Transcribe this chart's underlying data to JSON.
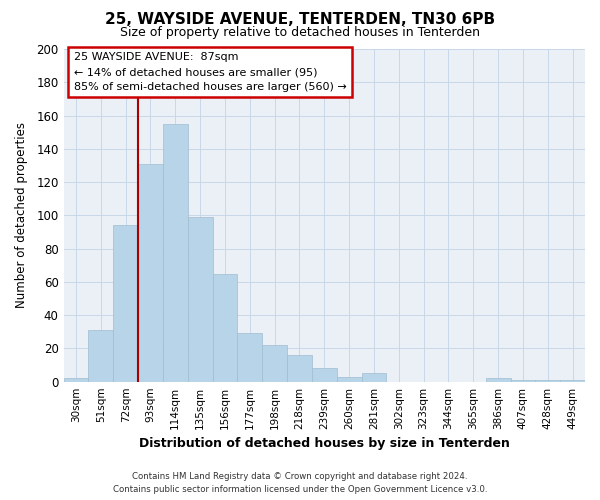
{
  "title": "25, WAYSIDE AVENUE, TENTERDEN, TN30 6PB",
  "subtitle": "Size of property relative to detached houses in Tenterden",
  "xlabel": "Distribution of detached houses by size in Tenterden",
  "ylabel": "Number of detached properties",
  "bar_labels": [
    "30sqm",
    "51sqm",
    "72sqm",
    "93sqm",
    "114sqm",
    "135sqm",
    "156sqm",
    "177sqm",
    "198sqm",
    "218sqm",
    "239sqm",
    "260sqm",
    "281sqm",
    "302sqm",
    "323sqm",
    "344sqm",
    "365sqm",
    "386sqm",
    "407sqm",
    "428sqm",
    "449sqm"
  ],
  "bar_heights": [
    2,
    31,
    94,
    131,
    155,
    99,
    65,
    29,
    22,
    16,
    8,
    3,
    5,
    0,
    0,
    0,
    0,
    2,
    1,
    1,
    1
  ],
  "bar_color": "#b8d4e8",
  "bar_edge_color": "#a0bdd0",
  "vline_x": 3,
  "vline_color": "#aa0000",
  "ylim": [
    0,
    200
  ],
  "yticks": [
    0,
    20,
    40,
    60,
    80,
    100,
    120,
    140,
    160,
    180,
    200
  ],
  "annotation_title": "25 WAYSIDE AVENUE:  87sqm",
  "annotation_line1": "← 14% of detached houses are smaller (95)",
  "annotation_line2": "85% of semi-detached houses are larger (560) →",
  "annotation_box_facecolor": "#ffffff",
  "annotation_box_edgecolor": "#cc0000",
  "footer_line1": "Contains HM Land Registry data © Crown copyright and database right 2024.",
  "footer_line2": "Contains public sector information licensed under the Open Government Licence v3.0.",
  "grid_color": "#c8d8e8",
  "background_color": "#eaf0f6"
}
